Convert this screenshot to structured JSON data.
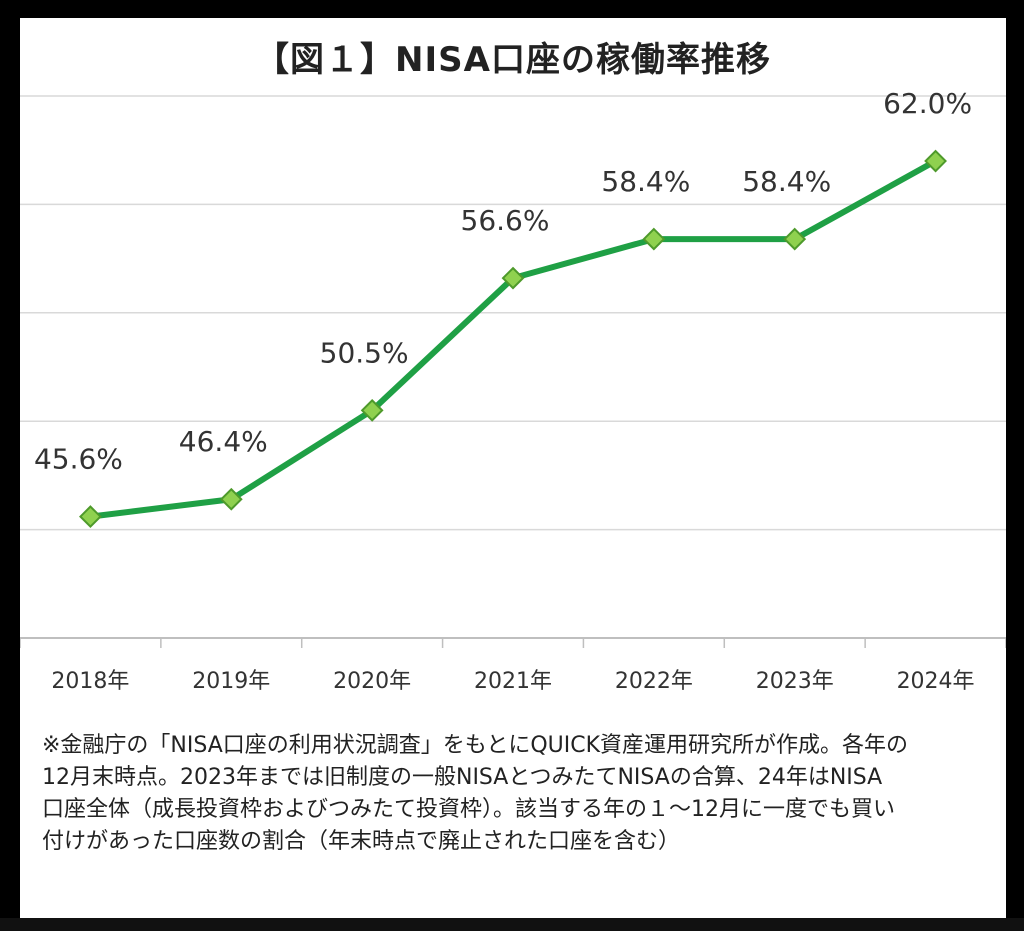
{
  "colors": {
    "line": "#1fa045",
    "marker_fill": "#8fd14f",
    "marker_stroke": "#4e9a2b",
    "grid": "#d9d9d9"
  },
  "chart_data": {
    "type": "line",
    "title": "【図１】NISA口座の稼働率推移",
    "categories": [
      "2018年",
      "2019年",
      "2020年",
      "2021年",
      "2022年",
      "2023年",
      "2024年"
    ],
    "series": [
      {
        "name": "稼働率",
        "values": [
          45.6,
          46.4,
          50.5,
          56.6,
          58.4,
          58.4,
          62.0
        ]
      }
    ],
    "data_labels": [
      "45.6%",
      "46.4%",
      "50.5%",
      "56.6%",
      "58.4%",
      "58.4%",
      "62.0%"
    ],
    "ylim": [
      40,
      65
    ],
    "grid": true,
    "xlabel": "",
    "ylabel": ""
  },
  "note": {
    "lines": [
      "※金融庁の「NISA口座の利用状況調査」をもとにQUICK資産運用研究所が作成。各年の",
      "12月末時点。2023年までは旧制度の一般NISAとつみたてNISAの合算、24年はNISA",
      "口座全体（成長投資枠およびつみたて投資枠）。該当する年の１～12月に一度でも買い",
      "付けがあった口座数の割合（年末時点で廃止された口座を含む）"
    ]
  }
}
